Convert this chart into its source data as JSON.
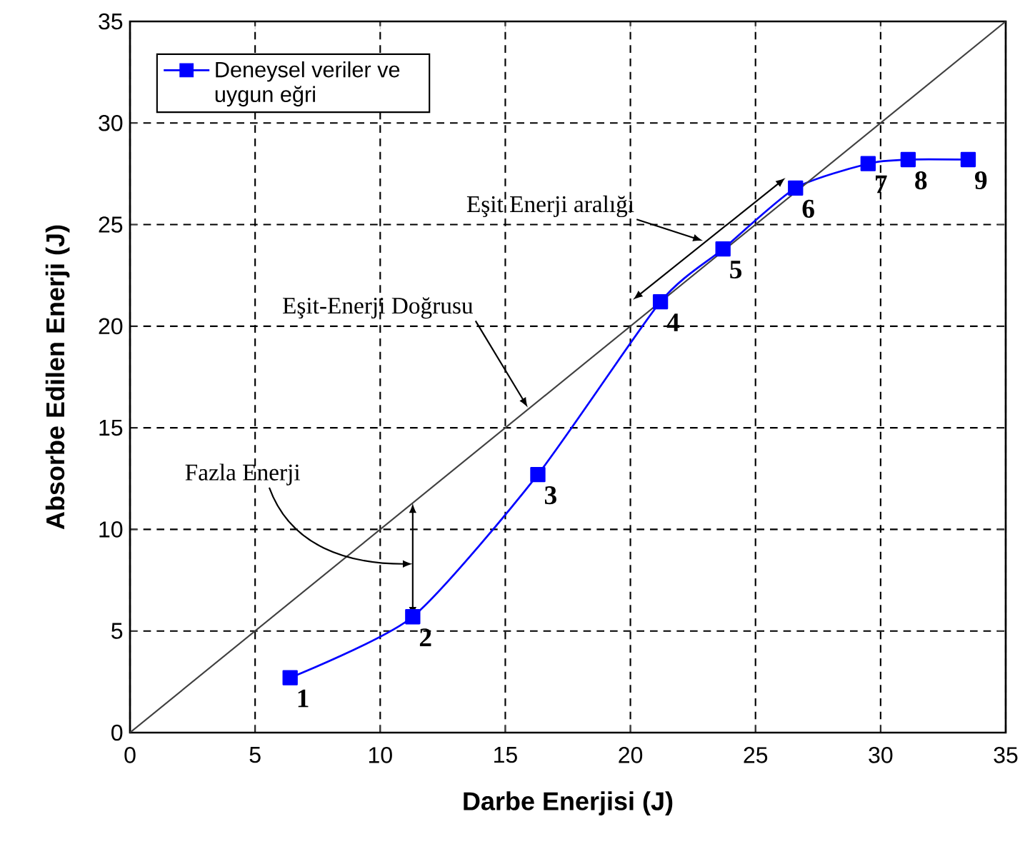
{
  "chart_data": {
    "type": "line",
    "xlabel": "Darbe Enerjisi (J)",
    "ylabel": "Absorbe Edilen Enerji (J)",
    "xlim": [
      0,
      35
    ],
    "ylim": [
      0,
      35
    ],
    "xticks": [
      0,
      5,
      10,
      15,
      20,
      25,
      30,
      35
    ],
    "yticks": [
      0,
      5,
      10,
      15,
      20,
      25,
      30,
      35
    ],
    "grid": true,
    "legend": "top left",
    "series": [
      {
        "name": "Deneysel veriler ve uygun eğri",
        "color": "#0000ff",
        "marker": "square",
        "x": [
          6.4,
          11.3,
          16.3,
          21.2,
          23.7,
          26.6,
          29.5,
          31.1,
          33.5
        ],
        "values": [
          2.7,
          5.7,
          12.7,
          21.2,
          23.8,
          26.8,
          28.0,
          28.2,
          28.2
        ]
      },
      {
        "color": "#404040",
        "marker": "none",
        "x": [
          0,
          35
        ],
        "values": [
          0,
          35
        ]
      }
    ],
    "annotations": [
      {
        "text": "1",
        "x": 6.4,
        "y": 2.7
      },
      {
        "text": "2",
        "x": 11.3,
        "y": 5.7
      },
      {
        "text": "3",
        "x": 16.3,
        "y": 12.7
      },
      {
        "text": "4",
        "x": 21.2,
        "y": 21.2
      },
      {
        "text": "5",
        "x": 23.7,
        "y": 23.8
      },
      {
        "text": "6",
        "x": 26.6,
        "y": 26.8
      },
      {
        "text": "7",
        "x": 29.5,
        "y": 28.0
      },
      {
        "text": "8",
        "x": 31.1,
        "y": 28.2
      },
      {
        "text": "9",
        "x": 33.5,
        "y": 28.2
      },
      "Eşit Enerji aralığı",
      {
        "text": "Eşit-Enerji Doğrusu",
        "x": 15.9,
        "y": 16.0
      },
      "Fazla Enerji"
    ]
  }
}
